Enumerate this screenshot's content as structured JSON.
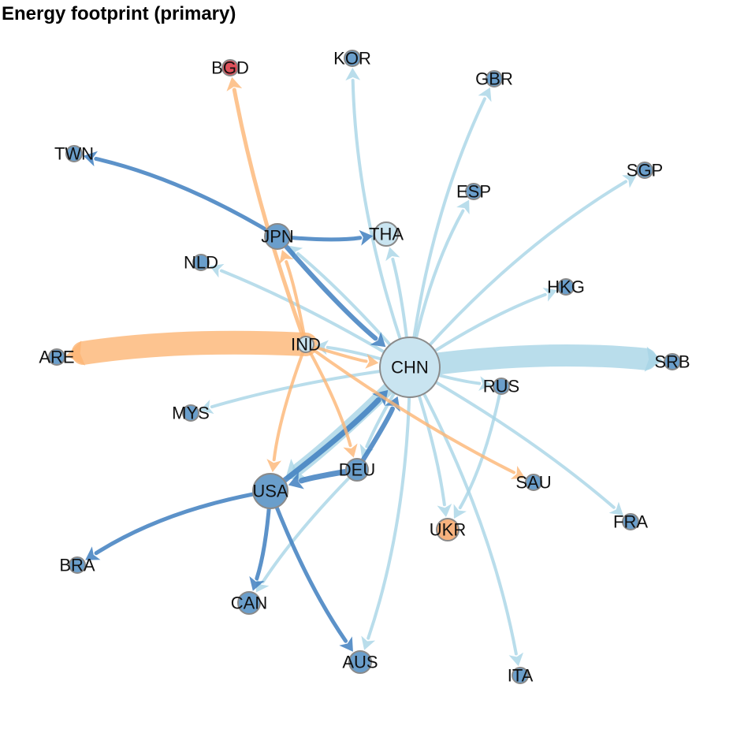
{
  "title": "Energy footprint (primary)",
  "colors": {
    "light_blue": "#a8d4e6",
    "dark_blue": "#3f7fbf",
    "orange": "#fdb574",
    "node_blue": "#6a9ecb",
    "node_light": "#c9e4f0",
    "node_orange": "#f7b27e",
    "node_red": "#e0505a",
    "node_border": "#8a8a8a"
  },
  "nodes": [
    {
      "id": "CHN",
      "label": "CHN",
      "fill": "node_light"
    },
    {
      "id": "JPN",
      "label": "JPN",
      "fill": "node_blue"
    },
    {
      "id": "USA",
      "label": "USA",
      "fill": "node_blue"
    },
    {
      "id": "DEU",
      "label": "DEU",
      "fill": "node_blue"
    },
    {
      "id": "IND",
      "label": "IND",
      "fill": "node_light"
    },
    {
      "id": "THA",
      "label": "THA",
      "fill": "node_light"
    },
    {
      "id": "ARE",
      "label": "ARE",
      "fill": "node_blue"
    },
    {
      "id": "SRB",
      "label": "SRB",
      "fill": "node_blue"
    },
    {
      "id": "BGD",
      "label": "BGD",
      "fill": "node_red"
    },
    {
      "id": "KOR",
      "label": "KOR",
      "fill": "node_blue"
    },
    {
      "id": "GBR",
      "label": "GBR",
      "fill": "node_blue"
    },
    {
      "id": "TWN",
      "label": "TWN",
      "fill": "node_blue"
    },
    {
      "id": "SGP",
      "label": "SGP",
      "fill": "node_blue"
    },
    {
      "id": "ESP",
      "label": "ESP",
      "fill": "node_blue"
    },
    {
      "id": "NLD",
      "label": "NLD",
      "fill": "node_blue"
    },
    {
      "id": "HKG",
      "label": "HKG",
      "fill": "node_blue"
    },
    {
      "id": "RUS",
      "label": "RUS",
      "fill": "node_blue"
    },
    {
      "id": "MYS",
      "label": "MYS",
      "fill": "node_blue"
    },
    {
      "id": "SAU",
      "label": "SAU",
      "fill": "node_blue"
    },
    {
      "id": "UKR",
      "label": "UKR",
      "fill": "node_orange"
    },
    {
      "id": "FRA",
      "label": "FRA",
      "fill": "node_blue"
    },
    {
      "id": "BRA",
      "label": "BRA",
      "fill": "node_blue"
    },
    {
      "id": "CAN",
      "label": "CAN",
      "fill": "node_blue"
    },
    {
      "id": "AUS",
      "label": "AUS",
      "fill": "node_blue"
    },
    {
      "id": "ITA",
      "label": "ITA",
      "fill": "node_blue"
    }
  ],
  "edges": [
    {
      "from": "IND",
      "to": "ARE",
      "color": "orange"
    },
    {
      "from": "CHN",
      "to": "SRB",
      "color": "light_blue"
    },
    {
      "from": "CHN",
      "to": "USA",
      "color": "light_blue"
    },
    {
      "from": "CHN",
      "to": "KOR",
      "color": "light_blue"
    },
    {
      "from": "CHN",
      "to": "GBR",
      "color": "light_blue"
    },
    {
      "from": "CHN",
      "to": "ESP",
      "color": "light_blue"
    },
    {
      "from": "CHN",
      "to": "SGP",
      "color": "light_blue"
    },
    {
      "from": "CHN",
      "to": "HKG",
      "color": "light_blue"
    },
    {
      "from": "CHN",
      "to": "THA",
      "color": "light_blue"
    },
    {
      "from": "CHN",
      "to": "NLD",
      "color": "light_blue"
    },
    {
      "from": "CHN",
      "to": "JPN",
      "color": "light_blue"
    },
    {
      "from": "CHN",
      "to": "IND",
      "color": "light_blue"
    },
    {
      "from": "CHN",
      "to": "MYS",
      "color": "light_blue"
    },
    {
      "from": "CHN",
      "to": "RUS",
      "color": "light_blue"
    },
    {
      "from": "CHN",
      "to": "FRA",
      "color": "light_blue"
    },
    {
      "from": "CHN",
      "to": "ITA",
      "color": "light_blue"
    },
    {
      "from": "CHN",
      "to": "UKR",
      "color": "light_blue"
    },
    {
      "from": "CHN",
      "to": "AUS",
      "color": "light_blue"
    },
    {
      "from": "CHN",
      "to": "DEU",
      "color": "light_blue"
    },
    {
      "from": "DEU",
      "to": "CAN",
      "color": "light_blue"
    },
    {
      "from": "RUS",
      "to": "UKR",
      "color": "light_blue"
    },
    {
      "from": "JPN",
      "to": "TWN",
      "color": "dark_blue"
    },
    {
      "from": "JPN",
      "to": "THA",
      "color": "dark_blue"
    },
    {
      "from": "JPN",
      "to": "CHN",
      "color": "dark_blue"
    },
    {
      "from": "USA",
      "to": "CHN",
      "color": "dark_blue"
    },
    {
      "from": "DEU",
      "to": "CHN",
      "color": "dark_blue"
    },
    {
      "from": "DEU",
      "to": "USA",
      "color": "dark_blue"
    },
    {
      "from": "USA",
      "to": "BRA",
      "color": "dark_blue"
    },
    {
      "from": "USA",
      "to": "CAN",
      "color": "dark_blue"
    },
    {
      "from": "USA",
      "to": "AUS",
      "color": "dark_blue"
    },
    {
      "from": "IND",
      "to": "BGD",
      "color": "orange"
    },
    {
      "from": "IND",
      "to": "USA",
      "color": "orange"
    },
    {
      "from": "IND",
      "to": "DEU",
      "color": "orange"
    },
    {
      "from": "IND",
      "to": "JPN",
      "color": "orange"
    },
    {
      "from": "IND",
      "to": "CHN",
      "color": "orange"
    },
    {
      "from": "IND",
      "to": "SAU",
      "color": "orange"
    }
  ]
}
